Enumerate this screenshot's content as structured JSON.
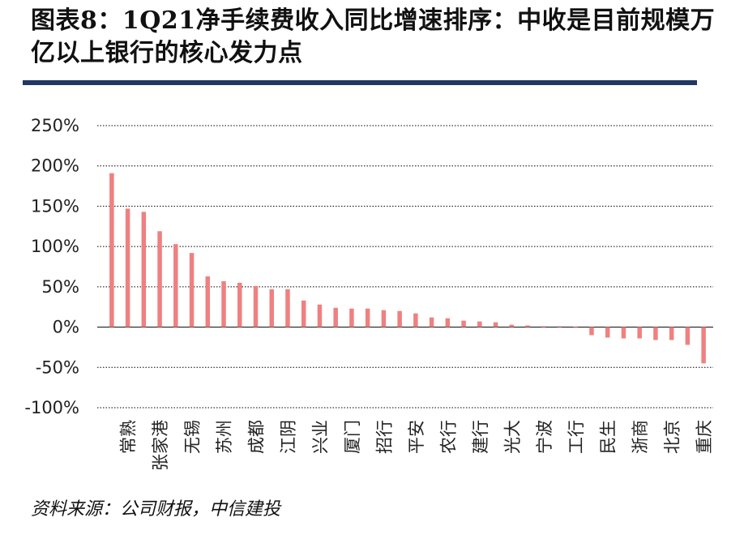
{
  "title": "图表8：1Q21净手续费收入同比增速排序：中收是目前规模万亿以上银行的核心发力点",
  "source": "资料来源：公司财报，中信建投",
  "colors": {
    "bar": "#f08080",
    "rule": "#1f3864",
    "grid": "#000000"
  },
  "chart_data": {
    "type": "bar",
    "title": "1Q21净手续费收入同比增速排序",
    "xlabel": "",
    "ylabel": "",
    "ylim": [
      -100,
      250
    ],
    "yticks": [
      -100,
      -50,
      0,
      50,
      100,
      150,
      200,
      250
    ],
    "ytick_labels": [
      "-100%",
      "-50%",
      "0%",
      "50%",
      "100%",
      "150%",
      "200%",
      "250%"
    ],
    "category_labels_shown": [
      "常熟",
      "张家港",
      "无锡",
      "苏州",
      "成都",
      "江阴",
      "兴业",
      "厦门",
      "招行",
      "平安",
      "农行",
      "建行",
      "光大",
      "宁波",
      "工行",
      "民生",
      "浙商",
      "北京",
      "重庆"
    ],
    "values": [
      191,
      147,
      143,
      119,
      103,
      92,
      63,
      57,
      55,
      51,
      47,
      47,
      33,
      28,
      24,
      23,
      23,
      21,
      20,
      17,
      12,
      11,
      8,
      7,
      6,
      3,
      2,
      1,
      1,
      0,
      -10,
      -13,
      -14,
      -14,
      -16,
      -16,
      -22,
      -45
    ],
    "grid": true,
    "legend": "none"
  }
}
